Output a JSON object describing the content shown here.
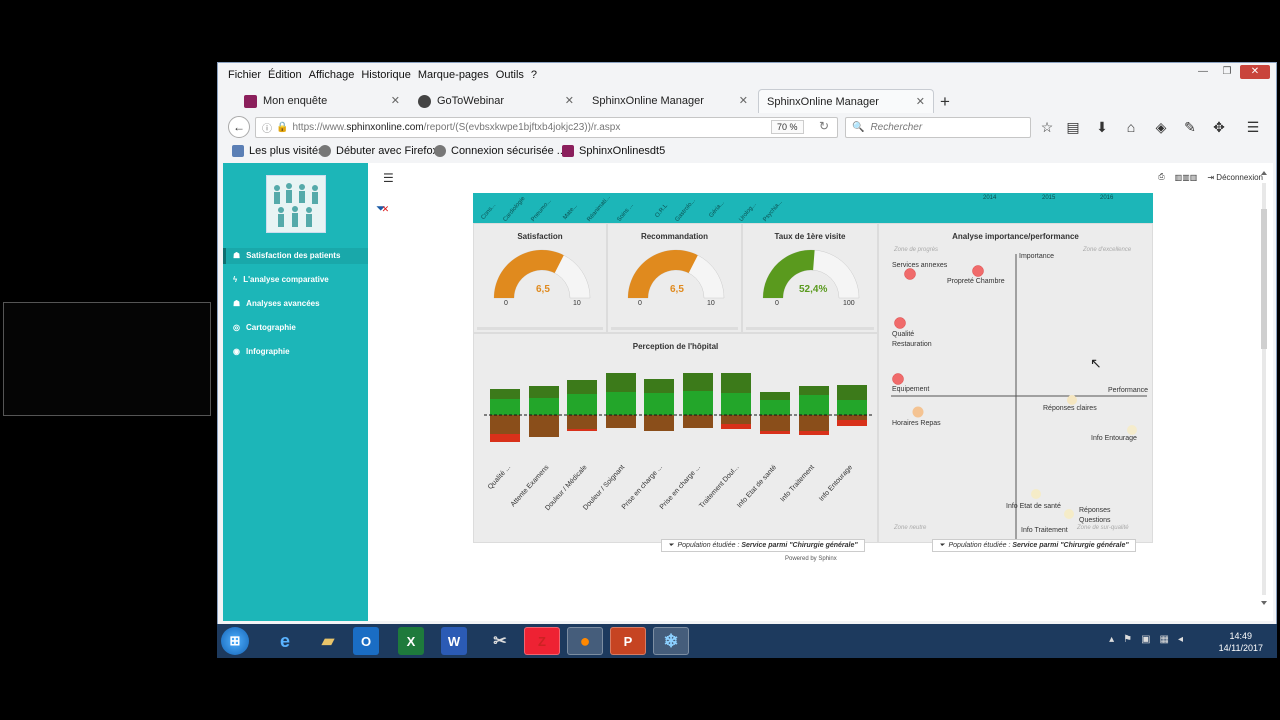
{
  "menu": [
    "Fichier",
    "Édition",
    "Affichage",
    "Historique",
    "Marque-pages",
    "Outils",
    "?"
  ],
  "tabs": [
    {
      "label": "Mon enquête",
      "color": "#8b1f5c"
    },
    {
      "label": "GoToWebinar",
      "color": "#444444"
    },
    {
      "label": "SphinxOnline Manager",
      "color": "#dddddd"
    },
    {
      "label": "SphinxOnline Manager",
      "color": "#dddddd"
    }
  ],
  "url": {
    "prefix": "https://www.",
    "host": "sphinxonline.com",
    "path": "/report/(S(evbsxkwpe1bjftxb4jokjc23))/r.aspx"
  },
  "zoom": "70 %",
  "search_placeholder": "Rechercher",
  "bookmarks": [
    "Les plus visités",
    "Débuter avec Firefox",
    "Connexion sécurisée ...",
    "SphinxOnlinesdt5"
  ],
  "sidebar": [
    "Satisfaction des patients",
    "L'analyse comparative",
    "Analyses avancées",
    "Cartographie",
    "Infographie"
  ],
  "deconnexion": "Déconnexion",
  "band_labels": [
    "Cons...",
    "Cardiologie",
    "Pneumo...",
    "Mate...",
    "Réanimati...",
    "Soins ...",
    "O.R.L",
    "Gastrolo...",
    "Géria...",
    "Urolog...",
    "Psychia..."
  ],
  "years": [
    "2014",
    "2015",
    "2016"
  ],
  "gauges": [
    {
      "title": "Satisfaction",
      "value": "6,5",
      "min": "0",
      "max": "10",
      "fraction": 0.65,
      "color": "#e08a1e"
    },
    {
      "title": "Recommandation",
      "value": "6,5",
      "min": "0",
      "max": "10",
      "fraction": 0.65,
      "color": "#e08a1e"
    },
    {
      "title": "Taux de 1ère visite",
      "value": "52,4%",
      "min": "0",
      "max": "100",
      "fraction": 0.524,
      "color": "#5a9a1e"
    }
  ],
  "perception": {
    "title": "Perception de l'hôpital",
    "categories": [
      "Qualité ...",
      "Attente Examens",
      "Douleur / Médicale",
      "Douleur / Soignant",
      "Prise en charge ...",
      "Prise en charge ...",
      "Traitement Doul...",
      "Info Etat de santé",
      "Info Traitement",
      "Info Entourage"
    ]
  },
  "importance": {
    "title": "Analyse importance/performance",
    "axis_y": "Importance",
    "axis_x": "Performance",
    "zones": [
      "Zone de progrès",
      "Zone d'excellence",
      "Zone neutre",
      "Zone de sur-qualité"
    ],
    "points": [
      "Services annexes",
      "Propreté Chambre",
      "Qualité Restauration",
      "Equipement",
      "Horaires Repas",
      "Réponses claires",
      "Info Entourage",
      "Info Etat de santé",
      "Réponses Questions",
      "Info Traitement"
    ]
  },
  "population": {
    "label": "Population étudiée :",
    "value": "Service parmi \"Chirurgie générale\""
  },
  "powered": "Powered by Sphinx",
  "clock": {
    "time": "14:49",
    "date": "14/11/2017"
  }
}
